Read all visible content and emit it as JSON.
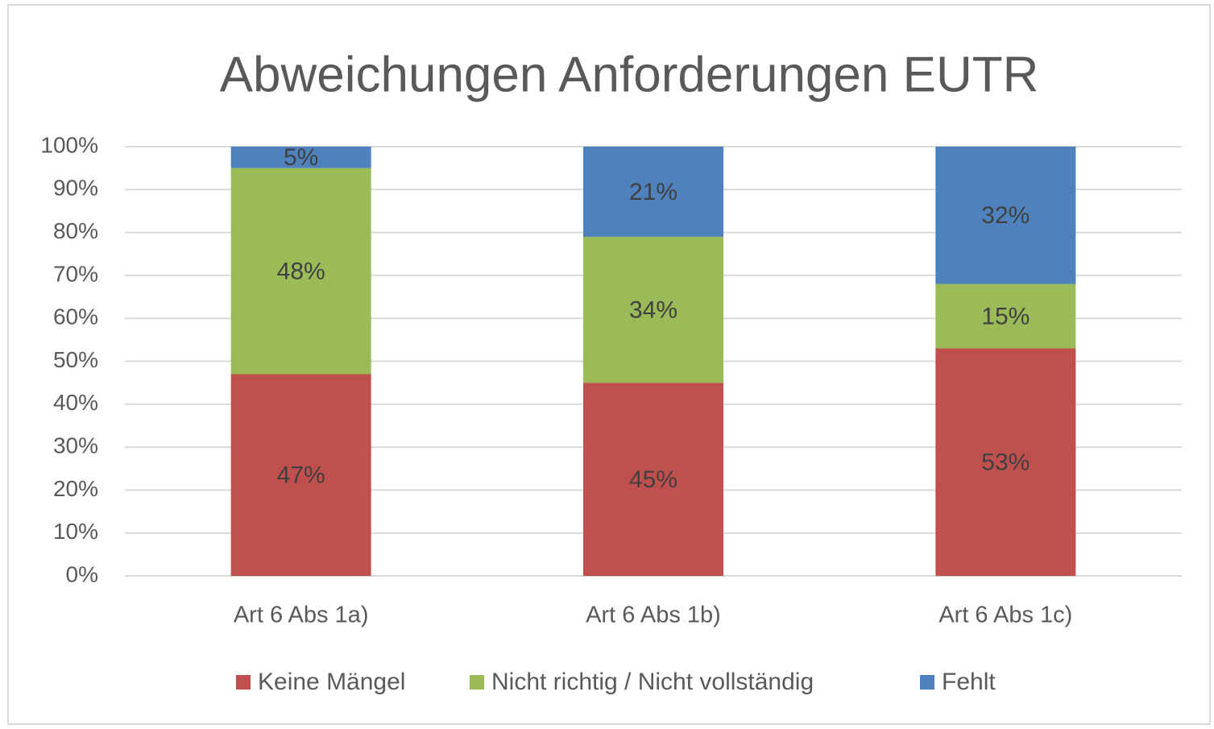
{
  "chart_data": {
    "type": "bar",
    "stacked": true,
    "title": "Abweichungen Anforderungen EUTR",
    "categories": [
      "Art 6 Abs 1a)",
      "Art 6 Abs 1b)",
      "Art 6 Abs 1c)"
    ],
    "series": [
      {
        "name": "Keine Mängel",
        "color": "#c0504d",
        "values": [
          47,
          45,
          53
        ],
        "value_labels": [
          "47%",
          "45%",
          "53%"
        ]
      },
      {
        "name": "Nicht richtig / Nicht vollständig",
        "color": "#9bbb59",
        "values": [
          48,
          34,
          15
        ],
        "value_labels": [
          "48%",
          "34%",
          "15%"
        ]
      },
      {
        "name": "Fehlt",
        "color": "#4f81bd",
        "values": [
          5,
          21,
          32
        ],
        "value_labels": [
          "5%",
          "21%",
          "32%"
        ]
      }
    ],
    "ylim": [
      0,
      100
    ],
    "yticks": [
      {
        "value": 0,
        "label": "0%"
      },
      {
        "value": 10,
        "label": "10%"
      },
      {
        "value": 20,
        "label": "20%"
      },
      {
        "value": 30,
        "label": "30%"
      },
      {
        "value": 40,
        "label": "40%"
      },
      {
        "value": 50,
        "label": "50%"
      },
      {
        "value": 60,
        "label": "60%"
      },
      {
        "value": 70,
        "label": "70%"
      },
      {
        "value": 80,
        "label": "80%"
      },
      {
        "value": 90,
        "label": "90%"
      },
      {
        "value": 100,
        "label": "100%"
      }
    ],
    "grid": true,
    "legend": "bottom"
  }
}
